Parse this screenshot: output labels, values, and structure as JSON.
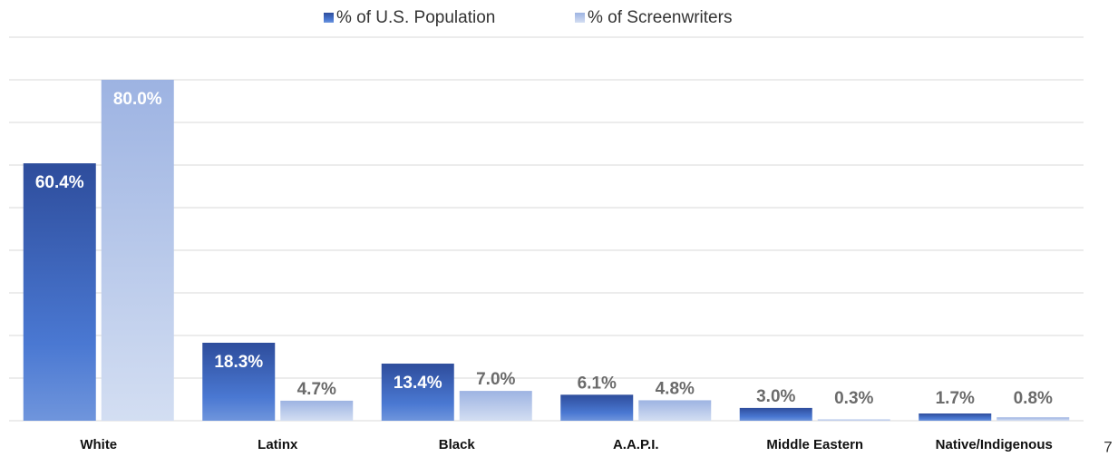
{
  "chart_data": {
    "type": "bar",
    "categories": [
      "White",
      "Latinx",
      "Black",
      "A.A.P.I.",
      "Middle Eastern",
      "Native/Indigenous"
    ],
    "series": [
      {
        "name": "% of U.S. Population",
        "color": "#3a5fb8",
        "values": [
          60.4,
          18.3,
          13.4,
          6.1,
          3.0,
          1.7
        ],
        "value_labels": [
          "60.4%",
          "18.3%",
          "13.4%",
          "6.1%",
          "3.0%",
          "1.7%"
        ]
      },
      {
        "name": "% of Screenwriters",
        "color": "#a9bde6",
        "values": [
          80.0,
          4.7,
          7.0,
          4.8,
          0.3,
          0.8
        ],
        "value_labels": [
          "80.0%",
          "4.7%",
          "7.0%",
          "4.8%",
          "0.3%",
          "0.8%"
        ]
      }
    ],
    "ylim": [
      0,
      90
    ],
    "yticks": [
      0,
      10,
      20,
      30,
      40,
      50,
      60,
      70,
      80,
      90
    ],
    "grid": true,
    "legend": "top"
  },
  "page_number": "7"
}
